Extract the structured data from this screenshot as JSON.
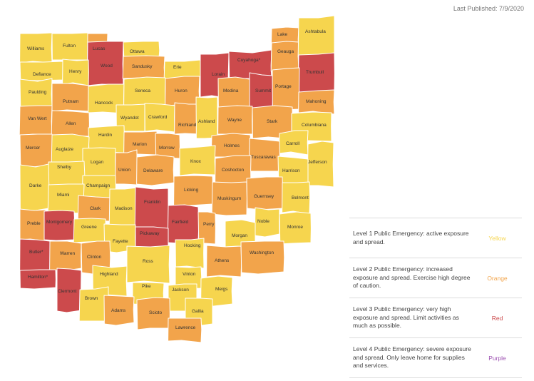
{
  "header": {
    "published": "Last Published: 7/9/2020"
  },
  "colors": {
    "yellow": "#f6d54e",
    "orange": "#f2a44b",
    "red": "#cc4a4c",
    "purple": "#9c4fb1"
  },
  "map": {
    "counties": [
      {
        "name": "Williams",
        "level": "yellow"
      },
      {
        "name": "Fulton",
        "level": "yellow"
      },
      {
        "name": "Lucas",
        "level": "orange"
      },
      {
        "name": "Wood",
        "level": "red"
      },
      {
        "name": "Ottawa",
        "level": "yellow"
      },
      {
        "name": "Sandusky",
        "level": "orange"
      },
      {
        "name": "Erie",
        "level": "yellow"
      },
      {
        "name": "Lorain",
        "level": "red"
      },
      {
        "name": "Cuyahoga*",
        "level": "red"
      },
      {
        "name": "Lake",
        "level": "orange"
      },
      {
        "name": "Geauga",
        "level": "orange"
      },
      {
        "name": "Ashtabula",
        "level": "yellow"
      },
      {
        "name": "Trumbull",
        "level": "red"
      },
      {
        "name": "Defiance",
        "level": "yellow"
      },
      {
        "name": "Henry",
        "level": "yellow"
      },
      {
        "name": "Paulding",
        "level": "yellow"
      },
      {
        "name": "Putnam",
        "level": "orange"
      },
      {
        "name": "Hancock",
        "level": "yellow"
      },
      {
        "name": "Seneca",
        "level": "yellow"
      },
      {
        "name": "Huron",
        "level": "orange"
      },
      {
        "name": "Medina",
        "level": "orange"
      },
      {
        "name": "Summit",
        "level": "red"
      },
      {
        "name": "Portage",
        "level": "orange"
      },
      {
        "name": "Mahoning",
        "level": "orange"
      },
      {
        "name": "Van Wert",
        "level": "orange"
      },
      {
        "name": "Allen",
        "level": "orange"
      },
      {
        "name": "Wyandot",
        "level": "yellow"
      },
      {
        "name": "Crawford",
        "level": "yellow"
      },
      {
        "name": "Richland",
        "level": "orange"
      },
      {
        "name": "Ashland",
        "level": "yellow"
      },
      {
        "name": "Wayne",
        "level": "orange"
      },
      {
        "name": "Stark",
        "level": "orange"
      },
      {
        "name": "Columbiana",
        "level": "yellow"
      },
      {
        "name": "Hardin",
        "level": "yellow"
      },
      {
        "name": "Marion",
        "level": "orange"
      },
      {
        "name": "Morrow",
        "level": "orange"
      },
      {
        "name": "Holmes",
        "level": "orange"
      },
      {
        "name": "Carroll",
        "level": "yellow"
      },
      {
        "name": "Mercer",
        "level": "orange"
      },
      {
        "name": "Auglaize",
        "level": "yellow"
      },
      {
        "name": "Tuscarawas",
        "level": "orange"
      },
      {
        "name": "Jefferson",
        "level": "yellow"
      },
      {
        "name": "Logan",
        "level": "yellow"
      },
      {
        "name": "Union",
        "level": "orange"
      },
      {
        "name": "Delaware",
        "level": "orange"
      },
      {
        "name": "Knox",
        "level": "yellow"
      },
      {
        "name": "Coshocton",
        "level": "orange"
      },
      {
        "name": "Harrison",
        "level": "yellow"
      },
      {
        "name": "Shelby",
        "level": "yellow"
      },
      {
        "name": "Darke",
        "level": "yellow"
      },
      {
        "name": "Champaign",
        "level": "yellow"
      },
      {
        "name": "Licking",
        "level": "orange"
      },
      {
        "name": "Muskingum",
        "level": "orange"
      },
      {
        "name": "Guernsey",
        "level": "orange"
      },
      {
        "name": "Belmont",
        "level": "yellow"
      },
      {
        "name": "Miami",
        "level": "yellow"
      },
      {
        "name": "Clark",
        "level": "orange"
      },
      {
        "name": "Madison",
        "level": "yellow"
      },
      {
        "name": "Franklin",
        "level": "red"
      },
      {
        "name": "Preble",
        "level": "orange"
      },
      {
        "name": "Montgomery",
        "level": "red"
      },
      {
        "name": "Greene",
        "level": "yellow"
      },
      {
        "name": "Fairfield",
        "level": "red"
      },
      {
        "name": "Perry",
        "level": "orange"
      },
      {
        "name": "Noble",
        "level": "yellow"
      },
      {
        "name": "Monroe",
        "level": "yellow"
      },
      {
        "name": "Morgan",
        "level": "yellow"
      },
      {
        "name": "Fayette",
        "level": "yellow"
      },
      {
        "name": "Pickaway",
        "level": "red"
      },
      {
        "name": "Hocking",
        "level": "yellow"
      },
      {
        "name": "Butler*",
        "level": "red"
      },
      {
        "name": "Warren",
        "level": "orange"
      },
      {
        "name": "Clinton",
        "level": "orange"
      },
      {
        "name": "Ross",
        "level": "yellow"
      },
      {
        "name": "Athens",
        "level": "orange"
      },
      {
        "name": "Washington",
        "level": "orange"
      },
      {
        "name": "Vinton",
        "level": "yellow"
      },
      {
        "name": "Hamilton*",
        "level": "red"
      },
      {
        "name": "Clermont",
        "level": "red"
      },
      {
        "name": "Highland",
        "level": "yellow"
      },
      {
        "name": "Pike",
        "level": "yellow"
      },
      {
        "name": "Jackson",
        "level": "yellow"
      },
      {
        "name": "Meigs",
        "level": "yellow"
      },
      {
        "name": "Brown",
        "level": "yellow"
      },
      {
        "name": "Adams",
        "level": "orange"
      },
      {
        "name": "Scioto",
        "level": "orange"
      },
      {
        "name": "Gallia",
        "level": "yellow"
      },
      {
        "name": "Lawrence",
        "level": "orange"
      }
    ]
  },
  "legend": [
    {
      "text": "Level 1 Public Emergency: active exposure and spread.",
      "label": "Yellow",
      "level": "yellow"
    },
    {
      "text": "Level 2 Public Emergency: increased exposure and spread. Exercise high degree of caution.",
      "label": "Orange",
      "level": "orange"
    },
    {
      "text": "Level 3 Public Emergency: very high exposure and spread. Limit activities as much as possible.",
      "label": "Red",
      "level": "red"
    },
    {
      "text": "Level 4 Public Emergency: severe exposure and spread. Only leave home for supplies and services.",
      "label": "Purple",
      "level": "purple"
    }
  ]
}
